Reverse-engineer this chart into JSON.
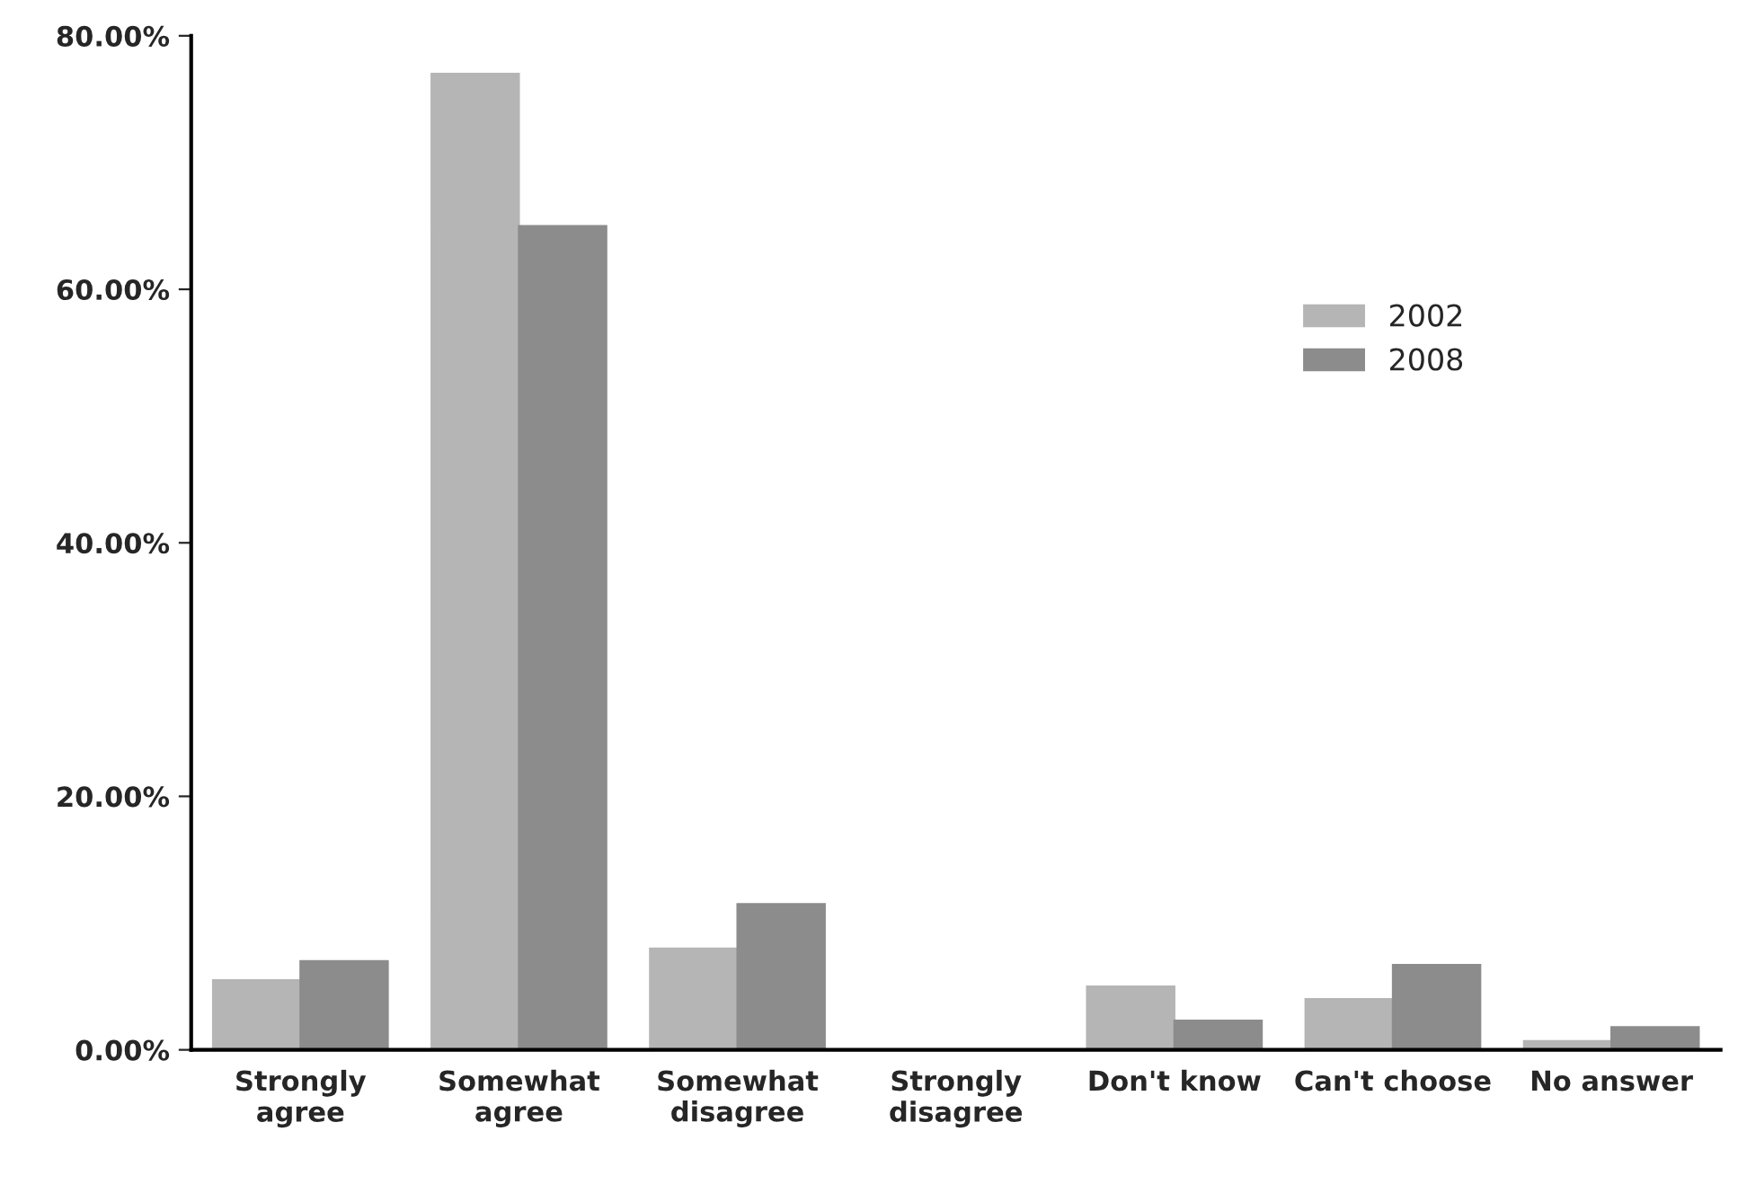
{
  "chart_data": {
    "type": "bar",
    "categories": [
      "Strongly\nagree",
      "Somewhat\nagree",
      "Somewhat\ndisagree",
      "Strongly\ndisagree",
      "Don't know",
      "Can't choose",
      "No answer"
    ],
    "series": [
      {
        "name": "2002",
        "color": "#b5b5b5",
        "values": [
          5.5,
          77,
          8,
          0,
          5,
          4,
          0.7
        ]
      },
      {
        "name": "2008",
        "color": "#8c8c8c",
        "values": [
          7,
          65,
          11.5,
          0,
          2.3,
          6.7,
          1.8
        ]
      }
    ],
    "ylim": [
      0,
      80
    ],
    "yticks": [
      {
        "value": 0,
        "label": "0.00%"
      },
      {
        "value": 20,
        "label": "20.00%"
      },
      {
        "value": 40,
        "label": "40.00%"
      },
      {
        "value": 60,
        "label": "60.00%"
      },
      {
        "value": 80,
        "label": "80.00%"
      }
    ],
    "legend": "right",
    "grid": false
  }
}
